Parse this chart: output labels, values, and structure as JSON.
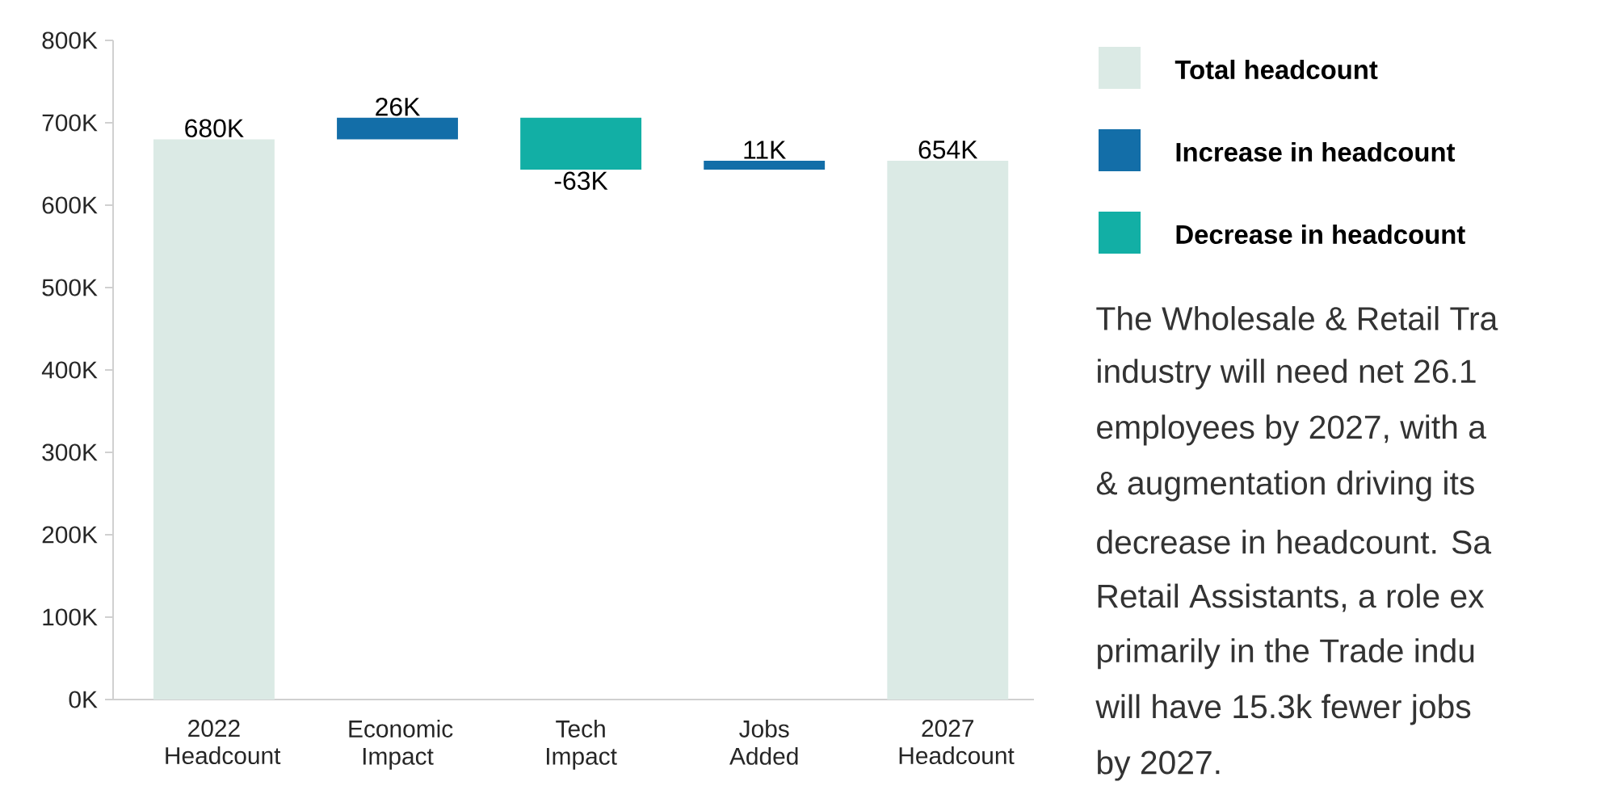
{
  "chart_data": {
    "type": "bar",
    "categories": [
      "2022 Headcount",
      "Economic Impact",
      "Tech Impact",
      "Jobs Added",
      "2027 Headcount"
    ],
    "series": [
      {
        "name": "Total headcount",
        "color": "#dbeae5",
        "values": [
          680,
          null,
          null,
          null,
          654
        ],
        "base": [
          0,
          null,
          null,
          null,
          0
        ],
        "value_labels": [
          "680K",
          null,
          null,
          null,
          "654K"
        ]
      },
      {
        "name": "Increase in headcount",
        "color": "#136ea8",
        "values": [
          null,
          26,
          null,
          11,
          null
        ],
        "base": [
          null,
          680,
          null,
          643,
          null
        ],
        "value_labels": [
          null,
          "26K",
          null,
          "11K",
          null
        ]
      },
      {
        "name": "Decrease in headcount",
        "color": "#12afa5",
        "values": [
          null,
          null,
          -63,
          null,
          null
        ],
        "base": [
          null,
          null,
          706,
          null,
          null
        ],
        "value_labels": [
          null,
          null,
          "-63K",
          null,
          null
        ]
      }
    ],
    "ylim": [
      0,
      800
    ],
    "yticks": [
      {
        "value": 0,
        "label": "0K"
      },
      {
        "value": 100,
        "label": "100K"
      },
      {
        "value": 200,
        "label": "200K"
      },
      {
        "value": 300,
        "label": "300K"
      },
      {
        "value": 400,
        "label": "400K"
      },
      {
        "value": 500,
        "label": "500K"
      },
      {
        "value": 600,
        "label": "600K"
      },
      {
        "value": 700,
        "label": "700K"
      },
      {
        "value": 800,
        "label": "800K"
      }
    ],
    "legend": "right",
    "annotations": [
      "The Wholesale & Retail Tra",
      "industry will need net 26.1",
      "employees by 2027, with a",
      "& augmentation driving its",
      "decrease in headcount. Sa",
      "Retail Assistants, a role ex",
      "primarily in the Trade indu",
      "will have 15.3k fewer jobs",
      "by 2027."
    ]
  }
}
